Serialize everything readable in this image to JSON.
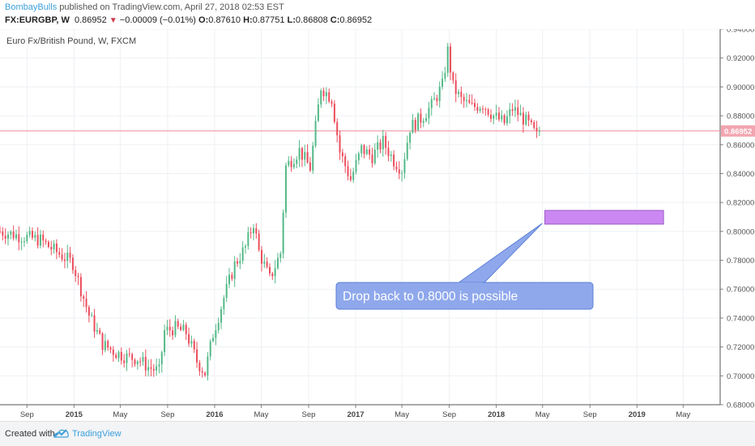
{
  "header": {
    "author": "BombayBulls",
    "published_text": "published on TradingView.com, April 27, 2018 02:53 EST",
    "symbol": "FX:EURGBP, W",
    "last": "0.86952",
    "change": "−0.00009 (−0.01%)",
    "open_label": "O:",
    "open": "0.87610",
    "high_label": "H:",
    "high": "0.87751",
    "low_label": "L:",
    "low": "0.86808",
    "close_label": "C:",
    "close": "0.86952"
  },
  "footer": {
    "created_with": "Created with",
    "brand": "TradingView",
    "logo_icon": "tradingview-cloud-icon"
  },
  "chart_data": {
    "type": "candlestick",
    "title": "Euro Fx/British Pound, W, FXCM",
    "ylim": [
      0.68,
      0.94
    ],
    "ytick_labels": [
      "0.94000",
      "0.92000",
      "0.90000",
      "0.88000",
      "0.86000",
      "0.84000",
      "0.82000",
      "0.80000",
      "0.78000",
      "0.76000",
      "0.74000",
      "0.72000",
      "0.70000",
      "0.68000"
    ],
    "ytick_values": [
      0.94,
      0.92,
      0.9,
      0.88,
      0.86,
      0.84,
      0.82,
      0.8,
      0.78,
      0.76,
      0.74,
      0.72,
      0.7,
      0.68
    ],
    "xtick_labels": [
      "Sep",
      "2015",
      "May",
      "Sep",
      "2016",
      "May",
      "Sep",
      "2017",
      "May",
      "Sep",
      "2018",
      "May",
      "Sep",
      "2019",
      "May"
    ],
    "xtick_dates": [
      "2014-09-01",
      "2015-01-01",
      "2015-05-01",
      "2015-09-01",
      "2016-01-01",
      "2016-05-01",
      "2016-09-01",
      "2017-01-01",
      "2017-05-01",
      "2017-09-01",
      "2018-01-01",
      "2018-05-01",
      "2018-09-01",
      "2019-01-01",
      "2019-05-01"
    ],
    "xlim": [
      "2014-06-23",
      "2019-08-05"
    ],
    "current_price": 0.86952,
    "current_price_label": "0.86952",
    "up_color": "#53b987",
    "down_color": "#eb4d5c",
    "price_line_color": "#f08a9a",
    "annotation": {
      "text": "Drop back to 0.8000 is possible",
      "fill": "#8fa8ec",
      "border": "#5b7fd6",
      "pointer_price": 0.8055,
      "pointer_date": "2018-04-30"
    },
    "target_zone": {
      "from_date": "2018-05-07",
      "to_date": "2019-03-11",
      "price_low": 0.805,
      "price_high": 0.8145,
      "fill": "#cc88f2",
      "border": "#9b59c9"
    },
    "anchors": [
      [
        "2014-06-23",
        0.8
      ],
      [
        "2014-08-11",
        0.797
      ],
      [
        "2014-10-06",
        0.794
      ],
      [
        "2014-11-10",
        0.787
      ],
      [
        "2014-12-29",
        0.778
      ],
      [
        "2015-02-09",
        0.742
      ],
      [
        "2015-03-16",
        0.722
      ],
      [
        "2015-04-20",
        0.716
      ],
      [
        "2015-05-18",
        0.713
      ],
      [
        "2015-06-15",
        0.712
      ],
      [
        "2015-07-13",
        0.706
      ],
      [
        "2015-08-10",
        0.703
      ],
      [
        "2015-08-24",
        0.731
      ],
      [
        "2015-09-21",
        0.733
      ],
      [
        "2015-10-19",
        0.73
      ],
      [
        "2015-11-16",
        0.71
      ],
      [
        "2015-12-07",
        0.702
      ],
      [
        "2015-12-28",
        0.729
      ],
      [
        "2016-01-25",
        0.754
      ],
      [
        "2016-02-22",
        0.777
      ],
      [
        "2016-03-21",
        0.789
      ],
      [
        "2016-04-11",
        0.806
      ],
      [
        "2016-04-25",
        0.786
      ],
      [
        "2016-05-23",
        0.767
      ],
      [
        "2016-06-20",
        0.785
      ],
      [
        "2016-07-04",
        0.845
      ],
      [
        "2016-08-08",
        0.856
      ],
      [
        "2016-09-05",
        0.844
      ],
      [
        "2016-10-03",
        0.9
      ],
      [
        "2016-10-31",
        0.892
      ],
      [
        "2016-11-21",
        0.855
      ],
      [
        "2016-12-19",
        0.836
      ],
      [
        "2017-01-16",
        0.857
      ],
      [
        "2017-02-13",
        0.852
      ],
      [
        "2017-03-13",
        0.862
      ],
      [
        "2017-04-10",
        0.849
      ],
      [
        "2017-05-01",
        0.843
      ],
      [
        "2017-05-22",
        0.872
      ],
      [
        "2017-06-19",
        0.878
      ],
      [
        "2017-07-17",
        0.887
      ],
      [
        "2017-08-14",
        0.901
      ],
      [
        "2017-08-28",
        0.925
      ],
      [
        "2017-09-11",
        0.9
      ],
      [
        "2017-10-02",
        0.891
      ],
      [
        "2017-10-30",
        0.886
      ],
      [
        "2017-11-27",
        0.888
      ],
      [
        "2017-12-25",
        0.88
      ],
      [
        "2018-01-22",
        0.875
      ],
      [
        "2018-02-12",
        0.885
      ],
      [
        "2018-03-05",
        0.88
      ],
      [
        "2018-03-26",
        0.874
      ],
      [
        "2018-04-16",
        0.866
      ],
      [
        "2018-04-23",
        0.8695
      ]
    ]
  }
}
